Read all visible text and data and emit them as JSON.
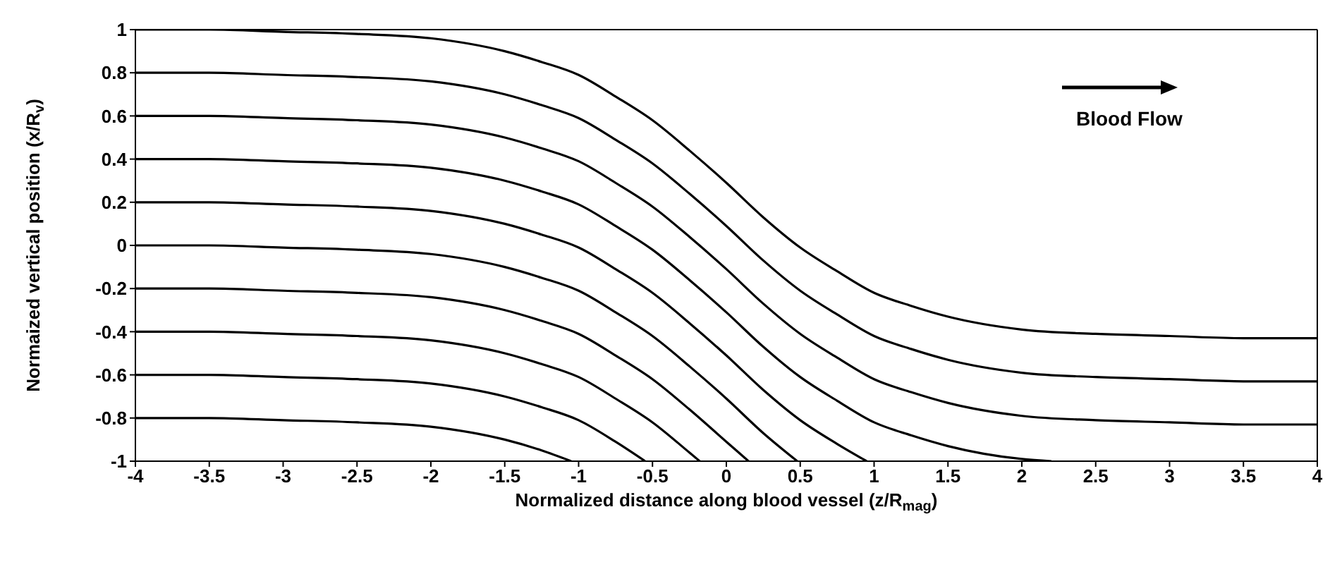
{
  "chart_data": {
    "type": "line",
    "xlabel": "Normalized distance along blood vessel (z/R$_{mag}$)",
    "ylabel": "Normaized vertical position (x/R$_{v}$)",
    "annotations": [
      "Blood Flow"
    ],
    "xlim": [
      -4,
      4
    ],
    "xticks": [
      -4,
      -3.5,
      -3,
      -2.5,
      -2,
      -1.5,
      -1,
      -0.5,
      0,
      0.5,
      1,
      1.5,
      2,
      2.5,
      3,
      3.5,
      4
    ],
    "ylim": [
      -1,
      1
    ],
    "yticks": [
      -1,
      -0.8,
      -0.6,
      -0.4,
      -0.2,
      0,
      0.2,
      0.4,
      0.6,
      0.8,
      1
    ],
    "marker": "none",
    "line_style": "solid",
    "series": [
      {
        "color": "#000000",
        "x": [
          -4,
          -3.5,
          -3,
          -2.5,
          -2,
          -1.5,
          -1.25,
          -1,
          -0.75,
          -0.5,
          -0.25,
          0,
          0.25,
          0.5,
          0.75,
          1,
          1.25,
          1.5,
          2,
          2.5,
          3,
          3.5,
          4
        ],
        "values": [
          1,
          1,
          0.99,
          0.98,
          0.96,
          0.9,
          0.85,
          0.79,
          0.69,
          0.58,
          0.44,
          0.29,
          0.13,
          -0.01,
          -0.12,
          -0.22,
          -0.28,
          -0.33,
          -0.39,
          -0.41,
          -0.42,
          -0.43,
          -0.43
        ]
      },
      {
        "color": "#000000",
        "x": [
          -4,
          -3.5,
          -3,
          -2.5,
          -2,
          -1.5,
          -1.25,
          -1,
          -0.75,
          -0.5,
          -0.25,
          0,
          0.25,
          0.5,
          0.75,
          1,
          1.25,
          1.5,
          2,
          2.5,
          3,
          3.5,
          4
        ],
        "values": [
          0.8,
          0.8,
          0.79,
          0.78,
          0.76,
          0.7,
          0.65,
          0.59,
          0.49,
          0.38,
          0.24,
          0.09,
          -0.07,
          -0.21,
          -0.32,
          -0.42,
          -0.48,
          -0.53,
          -0.59,
          -0.61,
          -0.62,
          -0.63,
          -0.63
        ]
      },
      {
        "color": "#000000",
        "x": [
          -4,
          -3.5,
          -3,
          -2.5,
          -2,
          -1.5,
          -1.25,
          -1,
          -0.75,
          -0.5,
          -0.25,
          0,
          0.25,
          0.5,
          0.75,
          1,
          1.25,
          1.5,
          2,
          2.5,
          3,
          3.5,
          4
        ],
        "values": [
          0.6,
          0.6,
          0.59,
          0.58,
          0.56,
          0.5,
          0.45,
          0.39,
          0.29,
          0.18,
          0.04,
          -0.11,
          -0.27,
          -0.41,
          -0.52,
          -0.62,
          -0.68,
          -0.73,
          -0.79,
          -0.81,
          -0.82,
          -0.83,
          -0.83
        ]
      },
      {
        "color": "#000000",
        "x": [
          -4,
          -3.5,
          -3,
          -2.5,
          -2,
          -1.5,
          -1.25,
          -1,
          -0.75,
          -0.5,
          -0.25,
          0,
          0.25,
          0.5,
          0.75,
          1,
          1.25,
          1.5,
          2,
          2.2
        ],
        "values": [
          0.4,
          0.4,
          0.39,
          0.38,
          0.36,
          0.3,
          0.25,
          0.19,
          0.09,
          -0.02,
          -0.16,
          -0.31,
          -0.47,
          -0.61,
          -0.72,
          -0.82,
          -0.88,
          -0.93,
          -0.99,
          -1
        ]
      },
      {
        "color": "#000000",
        "x": [
          -4,
          -3.5,
          -3,
          -2.5,
          -2,
          -1.5,
          -1.25,
          -1,
          -0.75,
          -0.5,
          -0.25,
          0,
          0.25,
          0.5,
          0.75,
          0.95
        ],
        "values": [
          0.2,
          0.2,
          0.19,
          0.18,
          0.16,
          0.1,
          0.05,
          -0.01,
          -0.11,
          -0.22,
          -0.36,
          -0.51,
          -0.67,
          -0.81,
          -0.92,
          -1
        ]
      },
      {
        "color": "#000000",
        "x": [
          -4,
          -3.5,
          -3,
          -2.5,
          -2,
          -1.5,
          -1.25,
          -1,
          -0.75,
          -0.5,
          -0.25,
          0,
          0.25,
          0.48
        ],
        "values": [
          0,
          0,
          -0.01,
          -0.02,
          -0.04,
          -0.1,
          -0.15,
          -0.21,
          -0.31,
          -0.42,
          -0.56,
          -0.71,
          -0.87,
          -1
        ]
      },
      {
        "color": "#000000",
        "x": [
          -4,
          -3.5,
          -3,
          -2.5,
          -2,
          -1.5,
          -1.25,
          -1,
          -0.75,
          -0.5,
          -0.25,
          0,
          0.15
        ],
        "values": [
          -0.2,
          -0.2,
          -0.21,
          -0.22,
          -0.24,
          -0.3,
          -0.35,
          -0.41,
          -0.51,
          -0.62,
          -0.76,
          -0.91,
          -1
        ]
      },
      {
        "color": "#000000",
        "x": [
          -4,
          -3.5,
          -3,
          -2.5,
          -2,
          -1.5,
          -1.25,
          -1,
          -0.75,
          -0.5,
          -0.25,
          -0.18
        ],
        "values": [
          -0.4,
          -0.4,
          -0.41,
          -0.42,
          -0.44,
          -0.5,
          -0.55,
          -0.61,
          -0.71,
          -0.82,
          -0.96,
          -1
        ]
      },
      {
        "color": "#000000",
        "x": [
          -4,
          -3.5,
          -3,
          -2.5,
          -2,
          -1.5,
          -1.25,
          -1,
          -0.75,
          -0.55
        ],
        "values": [
          -0.6,
          -0.6,
          -0.61,
          -0.62,
          -0.64,
          -0.7,
          -0.75,
          -0.81,
          -0.91,
          -1
        ]
      },
      {
        "color": "#000000",
        "x": [
          -4,
          -3.5,
          -3,
          -2.5,
          -2,
          -1.5,
          -1.25,
          -1.05
        ],
        "values": [
          -0.8,
          -0.8,
          -0.81,
          -0.82,
          -0.84,
          -0.9,
          -0.95,
          -1
        ]
      }
    ]
  }
}
